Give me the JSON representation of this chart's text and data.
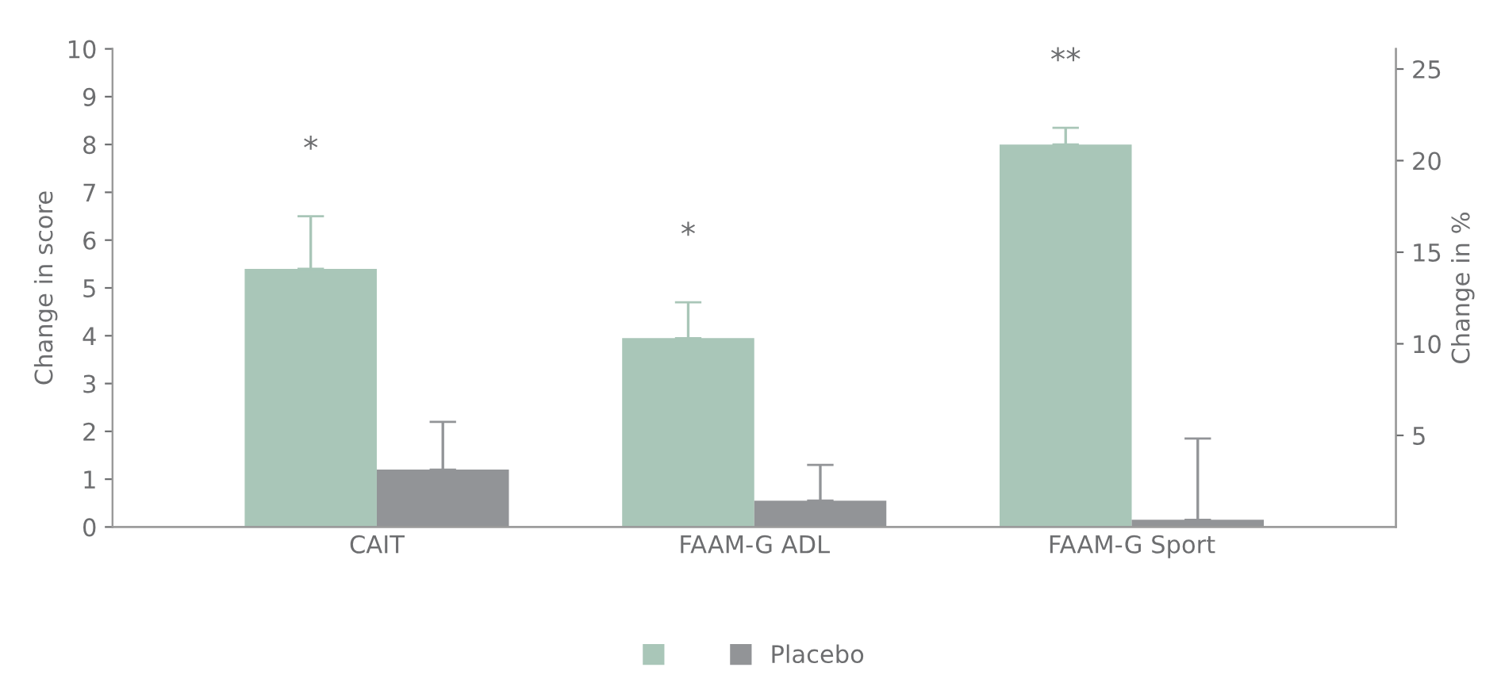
{
  "chart_data": {
    "type": "bar",
    "ylabel": "Change in score",
    "y2label": "Change in %",
    "categories": [
      "CAIT",
      "FAAM-G ADL",
      "FAAM-G Sport"
    ],
    "series": [
      {
        "color": "#a9c6b8",
        "values": [
          5.4,
          3.95,
          8.0
        ],
        "errors": [
          [
            5.4,
            6.5
          ],
          [
            3.95,
            4.7
          ],
          [
            8.0,
            8.35
          ]
        ]
      },
      {
        "name": "Placebo",
        "color": "#929497",
        "values": [
          1.2,
          0.55,
          0.15
        ],
        "errors": [
          [
            1.2,
            2.2
          ],
          [
            0.55,
            1.3
          ],
          [
            0.15,
            1.85
          ]
        ]
      }
    ],
    "ylim": [
      0,
      10
    ],
    "yticks": [
      0,
      1,
      2,
      3,
      4,
      5,
      6,
      7,
      8,
      9,
      10
    ],
    "y2lim": [
      0,
      26.1
    ],
    "y2ticks": [
      5,
      10,
      15,
      20,
      25
    ],
    "annotations": [
      "*",
      "*",
      "**"
    ],
    "grid": false,
    "legend": "bottom"
  }
}
